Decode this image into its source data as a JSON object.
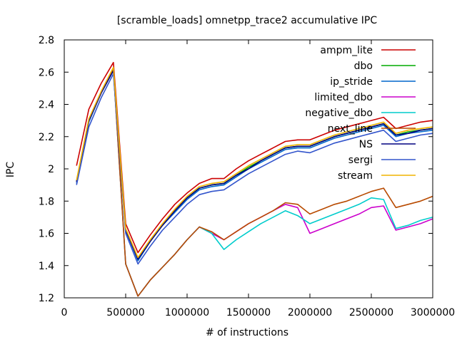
{
  "chart_data": {
    "type": "line",
    "title": "[scramble_loads] omnetpp_trace2 accumulative IPC",
    "xlabel": "# of instructions",
    "ylabel": "IPC",
    "xlim": [
      0,
      3000000
    ],
    "ylim": [
      1.2,
      2.8
    ],
    "x_ticks": [
      0,
      500000,
      1000000,
      1500000,
      2000000,
      2500000,
      3000000
    ],
    "x_tick_labels": [
      "0",
      "500000",
      "1000000",
      "1500000",
      "2000000",
      "2500000",
      "3000000"
    ],
    "y_ticks": [
      1.2,
      1.4,
      1.6,
      1.8,
      2.0,
      2.2,
      2.4,
      2.6,
      2.8
    ],
    "y_tick_labels": [
      "1.2",
      "1.4",
      "1.6",
      "1.8",
      "2",
      "2.2",
      "2.4",
      "2.6",
      "2.8"
    ],
    "grid": false,
    "legend_position": "top-right",
    "x": [
      100000,
      200000,
      300000,
      400000,
      500000,
      600000,
      700000,
      800000,
      900000,
      1000000,
      1100000,
      1200000,
      1300000,
      1400000,
      1500000,
      1600000,
      1700000,
      1800000,
      1900000,
      2000000,
      2100000,
      2200000,
      2300000,
      2400000,
      2500000,
      2600000,
      2700000,
      2800000,
      2900000,
      3000000
    ],
    "series": [
      {
        "name": "ampm_lite",
        "color": "#cc0000",
        "values": [
          2.02,
          2.37,
          2.53,
          2.66,
          1.66,
          1.48,
          1.59,
          1.69,
          1.78,
          1.85,
          1.91,
          1.94,
          1.94,
          2.0,
          2.05,
          2.09,
          2.13,
          2.17,
          2.18,
          2.18,
          2.21,
          2.24,
          2.26,
          2.28,
          2.3,
          2.32,
          2.25,
          2.27,
          2.29,
          2.3
        ]
      },
      {
        "name": "dbo",
        "color": "#00aa00",
        "values": [
          1.92,
          2.3,
          2.47,
          2.62,
          1.62,
          1.44,
          1.55,
          1.65,
          1.74,
          1.82,
          1.88,
          1.9,
          1.91,
          1.96,
          2.01,
          2.05,
          2.09,
          2.13,
          2.14,
          2.14,
          2.17,
          2.2,
          2.22,
          2.24,
          2.26,
          2.28,
          2.21,
          2.23,
          2.24,
          2.25
        ]
      },
      {
        "name": "ip_stride",
        "color": "#0066cc",
        "values": [
          1.91,
          2.29,
          2.47,
          2.61,
          1.62,
          1.43,
          1.55,
          1.65,
          1.73,
          1.81,
          1.87,
          1.89,
          1.9,
          1.95,
          2.0,
          2.04,
          2.08,
          2.12,
          2.13,
          2.13,
          2.16,
          2.19,
          2.21,
          2.23,
          2.25,
          2.27,
          2.2,
          2.22,
          2.23,
          2.24
        ]
      },
      {
        "name": "limited_dbo",
        "color": "#cc00cc",
        "values": [
          1.92,
          2.3,
          2.47,
          2.62,
          1.41,
          1.21,
          1.31,
          1.39,
          1.47,
          1.56,
          1.64,
          1.6,
          1.56,
          1.61,
          1.66,
          1.7,
          1.74,
          1.78,
          1.76,
          1.6,
          1.63,
          1.66,
          1.69,
          1.72,
          1.76,
          1.77,
          1.62,
          1.64,
          1.66,
          1.69
        ]
      },
      {
        "name": "negative_dbo",
        "color": "#00cccc",
        "values": [
          1.92,
          2.3,
          2.47,
          2.62,
          1.41,
          1.21,
          1.31,
          1.39,
          1.47,
          1.56,
          1.64,
          1.6,
          1.5,
          1.56,
          1.61,
          1.66,
          1.7,
          1.74,
          1.71,
          1.66,
          1.69,
          1.72,
          1.75,
          1.78,
          1.82,
          1.81,
          1.63,
          1.65,
          1.68,
          1.7
        ]
      },
      {
        "name": "next_line",
        "color": "#b84a00",
        "values": [
          1.92,
          2.3,
          2.47,
          2.62,
          1.41,
          1.21,
          1.31,
          1.39,
          1.47,
          1.56,
          1.64,
          1.61,
          1.56,
          1.61,
          1.66,
          1.7,
          1.74,
          1.79,
          1.78,
          1.72,
          1.75,
          1.78,
          1.8,
          1.83,
          1.86,
          1.88,
          1.76,
          1.78,
          1.8,
          1.83
        ]
      },
      {
        "name": "NS",
        "color": "#000080",
        "values": [
          1.92,
          2.3,
          2.47,
          2.61,
          1.62,
          1.44,
          1.55,
          1.65,
          1.74,
          1.82,
          1.88,
          1.9,
          1.91,
          1.96,
          2.0,
          2.05,
          2.09,
          2.13,
          2.14,
          2.14,
          2.17,
          2.2,
          2.22,
          2.24,
          2.26,
          2.28,
          2.21,
          2.22,
          2.24,
          2.25
        ]
      },
      {
        "name": "sergi",
        "color": "#3355cc",
        "values": [
          1.9,
          2.26,
          2.44,
          2.59,
          1.6,
          1.41,
          1.52,
          1.62,
          1.7,
          1.78,
          1.84,
          1.86,
          1.87,
          1.92,
          1.97,
          2.01,
          2.05,
          2.09,
          2.11,
          2.1,
          2.13,
          2.16,
          2.18,
          2.2,
          2.22,
          2.24,
          2.17,
          2.19,
          2.21,
          2.22
        ]
      },
      {
        "name": "stream",
        "color": "#f0b400",
        "values": [
          1.93,
          2.31,
          2.48,
          2.63,
          1.63,
          1.45,
          1.56,
          1.66,
          1.75,
          1.83,
          1.89,
          1.91,
          1.92,
          1.97,
          2.02,
          2.06,
          2.1,
          2.14,
          2.15,
          2.15,
          2.18,
          2.21,
          2.23,
          2.25,
          2.27,
          2.29,
          2.22,
          2.24,
          2.25,
          2.26
        ]
      }
    ]
  }
}
